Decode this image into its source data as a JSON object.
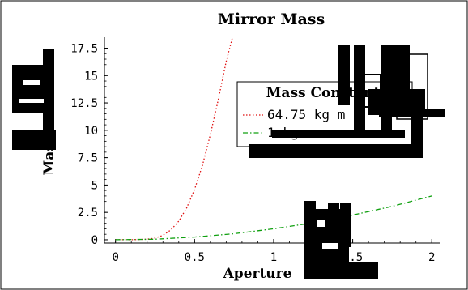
{
  "chart_data": {
    "type": "line",
    "title": "Mirror Mass",
    "xlabel": "Aperture",
    "ylabel": "Mass",
    "xlim": [
      -0.07,
      2.05
    ],
    "ylim": [
      -0.3,
      18.5
    ],
    "x_ticks": [
      "0",
      "0.5",
      "1",
      "1.5",
      "2"
    ],
    "y_ticks": [
      "0",
      "2.5",
      "5",
      "7.5",
      "10",
      "12.5",
      "15",
      "17.5"
    ],
    "legend": {
      "title": "Mass Constant",
      "position": "center-right"
    },
    "series": [
      {
        "name": "64.75 kg m",
        "color": "#e01010",
        "dash": "dotted",
        "x": [
          0,
          0.1,
          0.2,
          0.25,
          0.3,
          0.35,
          0.4,
          0.45,
          0.5,
          0.55,
          0.6,
          0.65,
          0.7,
          0.74
        ],
        "y": [
          0.0,
          0.0,
          0.05,
          0.15,
          0.4,
          0.9,
          1.7,
          2.9,
          4.6,
          6.8,
          9.6,
          12.8,
          16.3,
          18.5
        ]
      },
      {
        "name": "1 kg m",
        "color": "#10a010",
        "dash": "dashdot",
        "x": [
          0,
          0.25,
          0.5,
          0.75,
          1.0,
          1.25,
          1.5,
          1.75,
          2.0
        ],
        "y": [
          0.0,
          0.05,
          0.25,
          0.55,
          1.0,
          1.55,
          2.25,
          3.05,
          4.0
        ]
      }
    ]
  }
}
